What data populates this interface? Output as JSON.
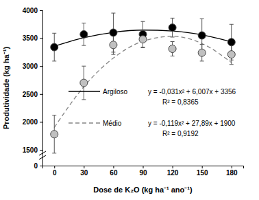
{
  "chart_data": {
    "type": "scatter",
    "x_label": "Dose de K₂O (kg ha⁻¹ ano⁻¹)",
    "y_label": "Produtividade (kg ha⁻¹)",
    "x": [
      0,
      30,
      60,
      90,
      120,
      150,
      180
    ],
    "xlim": [
      -12,
      192
    ],
    "xticks": [
      0,
      30,
      60,
      90,
      120,
      150,
      180
    ],
    "ylim": [
      0,
      4000
    ],
    "yticks": [
      0,
      1500,
      2000,
      2500,
      3000,
      3500,
      4000
    ],
    "grid": false,
    "series": [
      {
        "name": "Argiloso",
        "color": "#000000",
        "marker": "circle",
        "line_style": "solid",
        "values": [
          3340,
          3570,
          3600,
          3570,
          3690,
          3550,
          3430
        ],
        "errors": [
          250,
          200,
          350,
          230,
          170,
          300,
          320
        ],
        "trend": [
          3356,
          3508,
          3605,
          3646,
          3630,
          3560,
          3433
        ],
        "equation": "y = -0,031x² + 6,007x + 3356",
        "r_squared_label": "R² = 0,8365"
      },
      {
        "name": "Médio",
        "color": "#c0c0c0",
        "marker": "circle",
        "line_style": "dashed",
        "values": [
          1780,
          2700,
          3380,
          3480,
          3310,
          3240,
          3210
        ],
        "errors": [
          340,
          300,
          170,
          150,
          130,
          150,
          180
        ],
        "trend": [
          1900,
          2630,
          3145,
          3446,
          3533,
          3406,
          3064
        ],
        "equation": "y = -0,119x² + 27,89x + 1900",
        "r_squared_label": "R² = 0,9192"
      }
    ]
  }
}
